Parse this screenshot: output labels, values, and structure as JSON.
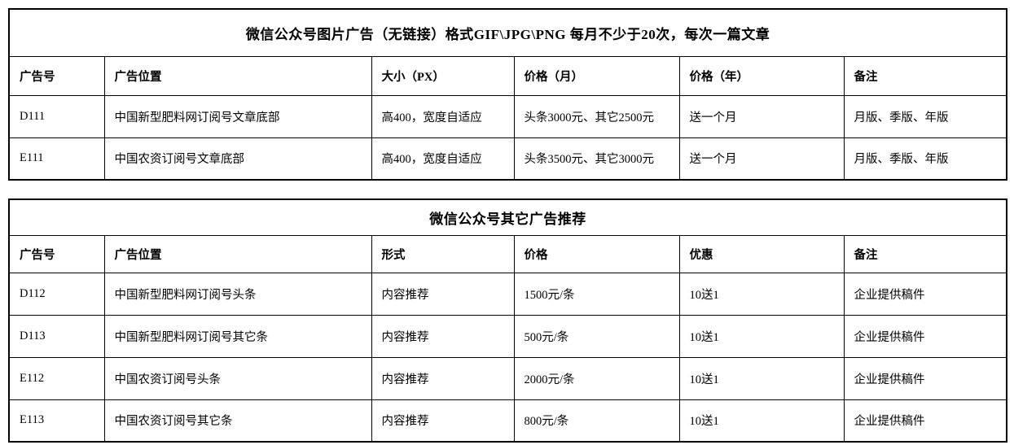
{
  "page": {
    "background_color": "#ffffff",
    "border_color": "#000000",
    "text_color": "#000000"
  },
  "tables": [
    {
      "id": "wechat-image-ads",
      "title": "微信公众号图片广告（无链接）格式GIF\\JPG\\PNG  每月不少于20次，每次一篇文章",
      "headers": [
        "广告号",
        "广告位置",
        "大小（PX）",
        "价格（月）",
        "价格（年）",
        "备注"
      ],
      "rows": [
        [
          "D111",
          "中国新型肥料网订阅号文章底部",
          "高400，宽度自适应",
          "头条3000元、其它2500元",
          "送一个月",
          "月版、季版、年版"
        ],
        [
          "E111",
          "中国农资订阅号文章底部",
          "高400，宽度自适应",
          "头条3500元、其它3000元",
          "送一个月",
          "月版、季版、年版"
        ]
      ]
    },
    {
      "id": "wechat-other-ads",
      "title": "微信公众号其它广告推荐",
      "headers": [
        "广告号",
        "广告位置",
        "形式",
        "价格",
        "优惠",
        "备注"
      ],
      "rows": [
        [
          "D112",
          "中国新型肥料网订阅号头条",
          "内容推荐",
          "1500元/条",
          "10送1",
          "企业提供稿件"
        ],
        [
          "D113",
          "中国新型肥料网订阅号其它条",
          "内容推荐",
          "500元/条",
          "10送1",
          "企业提供稿件"
        ],
        [
          "E112",
          "中国农资订阅号头条",
          "内容推荐",
          "2000元/条",
          "10送1",
          "企业提供稿件"
        ],
        [
          "E113",
          "中国农资订阅号其它条",
          "内容推荐",
          "800元/条",
          "10送1",
          "企业提供稿件"
        ]
      ]
    }
  ]
}
